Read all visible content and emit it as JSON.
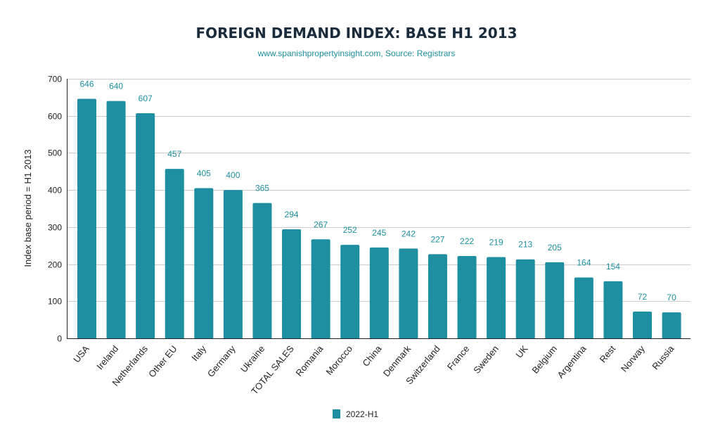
{
  "chart_data": {
    "type": "bar",
    "title": "FOREIGN DEMAND INDEX: BASE H1 2013",
    "subtitle": "www.spanishpropertyinsight.com, Source: Registrars",
    "xlabel": "",
    "ylabel": "Index base period = H1 2013",
    "ylim": [
      0,
      700
    ],
    "yticks": [
      0,
      100,
      200,
      300,
      400,
      500,
      600,
      700
    ],
    "grid": true,
    "legend_position": "bottom",
    "categories": [
      "USA",
      "Ireland",
      "Netherlands",
      "Other EU",
      "Italy",
      "Germany",
      "Ukraine",
      "TOTAL SALES",
      "Romania",
      "Morocco",
      "China",
      "Denmark",
      "Switzerland",
      "France",
      "Sweden",
      "UK",
      "Belgium",
      "Argentina",
      "Rest",
      "Norway",
      "Russia"
    ],
    "series": [
      {
        "name": "2022-H1",
        "color": "#1d8fa0",
        "values": [
          646,
          640,
          607,
          457,
          405,
          400,
          365,
          294,
          267,
          252,
          245,
          242,
          227,
          222,
          219,
          213,
          205,
          164,
          154,
          72,
          70
        ]
      }
    ],
    "data_labels": true
  }
}
